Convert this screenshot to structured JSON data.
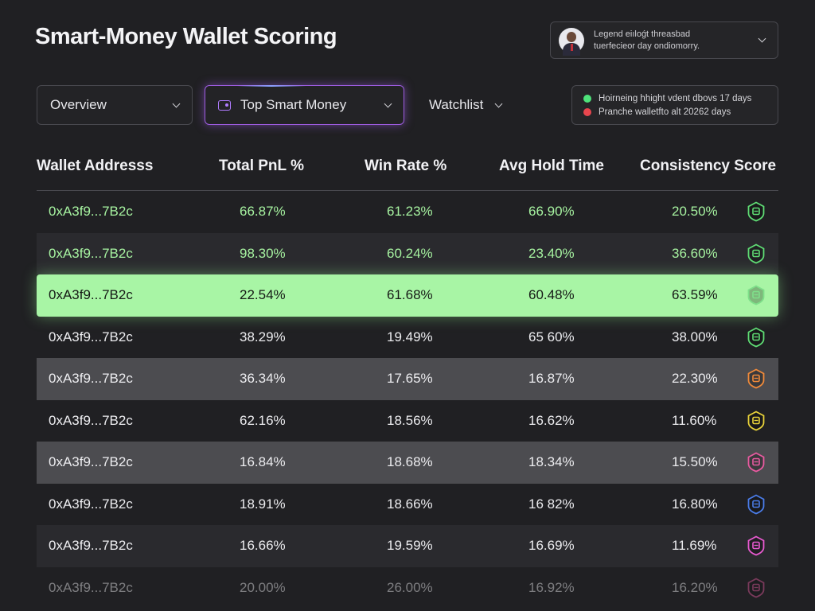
{
  "title": "Smart-Money Wallet Scoring",
  "legend": {
    "line1": "Legend eiıloǵt threasbad",
    "line2": "tuerfecieor day ondiomorry."
  },
  "filters": {
    "overview": "Overview",
    "top_smart_money": "Top Smart Money",
    "watchlist": "Watchlist"
  },
  "status": {
    "line1": "Hoirneing hhight vdent dbovs 17 days",
    "line2": "Pranche walletfto alt 20262 days",
    "colors": {
      "green": "#4ee27a",
      "red": "#e8464e"
    }
  },
  "table": {
    "headers": [
      "Wallet Addresss",
      "Total PnL %",
      "Win Rate %",
      "Avg Hold Time",
      "Consistency Score"
    ],
    "rows": [
      {
        "address": "0xA3f9...7B2c",
        "pnl": "66.87%",
        "win": "61.23%",
        "hold": "66.90%",
        "score": "20.50%",
        "badge_color": "#5fdc74"
      },
      {
        "address": "0xA3f9...7B2c",
        "pnl": "98.30%",
        "win": "60.24%",
        "hold": "23.40%",
        "score": "36.60%",
        "badge_color": "#5fdc74"
      },
      {
        "address": "0xA3f9...7B2c",
        "pnl": "22.54%",
        "win": "61.68%",
        "hold": "60.48%",
        "score": "63.59%",
        "badge_color": "#7ee08a"
      },
      {
        "address": "0xA3f9...7B2c",
        "pnl": "38.29%",
        "win": "19.49%",
        "hold": "65 60%",
        "score": "38.00%",
        "badge_color": "#5fdc74"
      },
      {
        "address": "0xA3f9...7B2c",
        "pnl": "36.34%",
        "win": "17.65%",
        "hold": "16.87%",
        "score": "22.30%",
        "badge_color": "#f08a3a"
      },
      {
        "address": "0xA3f9...7B2c",
        "pnl": "62.16%",
        "win": "18.56%",
        "hold": "16.62%",
        "score": "11.60%",
        "badge_color": "#e8d23a"
      },
      {
        "address": "0xA3f9...7B2c",
        "pnl": "16.84%",
        "win": "18.68%",
        "hold": "18.34%",
        "score": "15.50%",
        "badge_color": "#e85aa0"
      },
      {
        "address": "0xA3f9...7B2c",
        "pnl": "18.91%",
        "win": "18.66%",
        "hold": "16 82%",
        "score": "16.80%",
        "badge_color": "#4a7ce8"
      },
      {
        "address": "0xA3f9...7B2c",
        "pnl": "16.66%",
        "win": "19.59%",
        "hold": "16.69%",
        "score": "11.69%",
        "badge_color": "#e85ad0"
      },
      {
        "address": "0xA3f9...7B2c",
        "pnl": "20.00%",
        "win": "26.00%",
        "hold": "16.92%",
        "score": "16.20%",
        "badge_color": "#e85aa0"
      }
    ]
  }
}
